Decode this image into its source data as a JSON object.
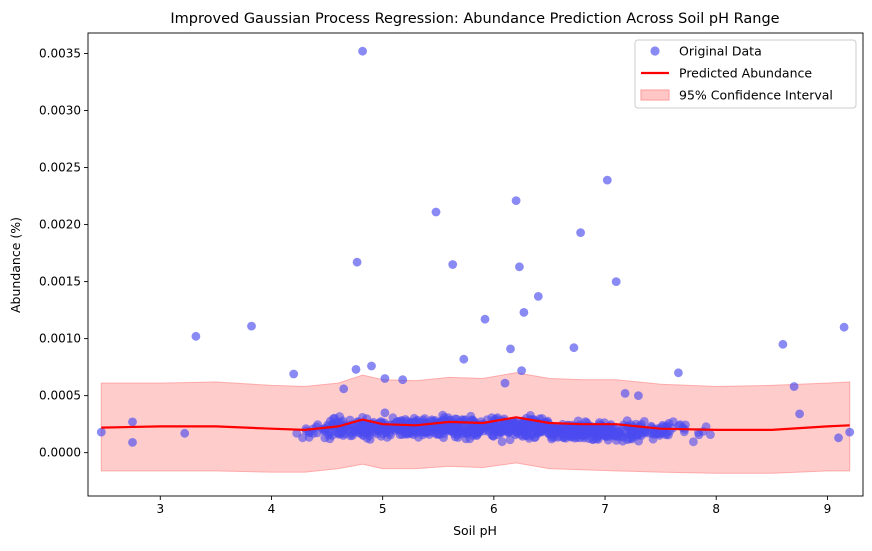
{
  "chart_data": {
    "type": "scatter",
    "title": "Improved Gaussian Process Regression: Abundance Prediction Across Soil pH Range",
    "xlabel": "Soil pH",
    "ylabel": "Abundance (%)",
    "xlim": [
      2.35,
      9.32
    ],
    "ylim": [
      -0.00038,
      0.00368
    ],
    "xticks": [
      3,
      4,
      5,
      6,
      7,
      8,
      9
    ],
    "xtick_labels": [
      "3",
      "4",
      "5",
      "6",
      "7",
      "8",
      "9"
    ],
    "yticks": [
      0.0,
      0.0005,
      0.001,
      0.0015,
      0.002,
      0.0025,
      0.003,
      0.0035
    ],
    "ytick_labels": [
      "0.0000",
      "0.0005",
      "0.0010",
      "0.0015",
      "0.0020",
      "0.0025",
      "0.0030",
      "0.0035"
    ],
    "grid": false,
    "legend_position": "top-right",
    "legend": [
      {
        "label": "Original Data",
        "kind": "marker",
        "color": "#4b4bf0"
      },
      {
        "label": "Predicted Abundance",
        "kind": "line",
        "color": "#ff0000"
      },
      {
        "label": "95% Confidence Interval",
        "kind": "patch",
        "color": "#ffc6c6"
      }
    ],
    "colors": {
      "points": "#4b4bf0",
      "line": "#ff0000",
      "band": "#ff9a9a"
    },
    "dense_cluster": {
      "x_min": 3.3,
      "x_max": 8.8,
      "y_center": 0.00019,
      "y_spread": 0.00012,
      "count": 900,
      "seed": 7
    },
    "series": [
      {
        "name": "Original Data",
        "type": "scatter",
        "points": [
          [
            2.47,
            0.00018
          ],
          [
            2.75,
            0.00027
          ],
          [
            2.75,
            9e-05
          ],
          [
            3.22,
            0.00017
          ],
          [
            3.32,
            0.00102
          ],
          [
            3.82,
            0.00111
          ],
          [
            4.2,
            0.00069
          ],
          [
            4.77,
            0.00167
          ],
          [
            4.82,
            0.00352
          ],
          [
            4.76,
            0.00073
          ],
          [
            4.9,
            0.00076
          ],
          [
            5.02,
            0.00065
          ],
          [
            5.18,
            0.00064
          ],
          [
            5.48,
            0.00211
          ],
          [
            5.63,
            0.00165
          ],
          [
            5.73,
            0.00082
          ],
          [
            5.92,
            0.00117
          ],
          [
            6.15,
            0.00091
          ],
          [
            6.2,
            0.00221
          ],
          [
            6.23,
            0.00163
          ],
          [
            6.25,
            0.00072
          ],
          [
            6.27,
            0.00123
          ],
          [
            6.4,
            0.00137
          ],
          [
            6.72,
            0.00092
          ],
          [
            6.78,
            0.00193
          ],
          [
            7.02,
            0.00239
          ],
          [
            7.1,
            0.0015
          ],
          [
            7.66,
            0.0007
          ],
          [
            8.6,
            0.00095
          ],
          [
            8.7,
            0.00058
          ],
          [
            9.15,
            0.0011
          ],
          [
            9.2,
            0.00018
          ],
          [
            9.1,
            0.00013
          ],
          [
            8.75,
            0.00034
          ],
          [
            7.3,
            0.0005
          ],
          [
            7.18,
            0.00052
          ],
          [
            6.1,
            0.00061
          ],
          [
            5.02,
            0.00035
          ],
          [
            4.65,
            0.00056
          ]
        ]
      },
      {
        "name": "Predicted Abundance",
        "type": "line",
        "x": [
          2.47,
          3.0,
          3.5,
          4.0,
          4.3,
          4.6,
          4.82,
          5.0,
          5.3,
          5.6,
          5.9,
          6.2,
          6.5,
          6.8,
          7.1,
          7.5,
          8.0,
          8.5,
          9.0,
          9.2
        ],
        "y": [
          0.00022,
          0.00023,
          0.00023,
          0.00021,
          0.0002,
          0.00023,
          0.00029,
          0.00025,
          0.00024,
          0.00027,
          0.00026,
          0.00031,
          0.00026,
          0.00025,
          0.00025,
          0.00021,
          0.0002,
          0.0002,
          0.00023,
          0.00024
        ]
      },
      {
        "name": "95% Confidence Interval",
        "type": "band",
        "x": [
          2.47,
          3.0,
          3.5,
          4.0,
          4.3,
          4.6,
          4.82,
          5.0,
          5.3,
          5.6,
          5.9,
          6.2,
          6.5,
          6.8,
          7.1,
          7.5,
          8.0,
          8.5,
          9.0,
          9.2
        ],
        "lower": [
          -0.00016,
          -0.00016,
          -0.00016,
          -0.00017,
          -0.00017,
          -0.00014,
          -0.0001,
          -0.00014,
          -0.00014,
          -0.00012,
          -0.00013,
          -9e-05,
          -0.00014,
          -0.00015,
          -0.00016,
          -0.00017,
          -0.00018,
          -0.00018,
          -0.00016,
          -0.00016
        ],
        "upper": [
          0.00061,
          0.00061,
          0.00062,
          0.00059,
          0.00058,
          0.00061,
          0.00068,
          0.00064,
          0.00063,
          0.00066,
          0.00065,
          0.0007,
          0.00065,
          0.00064,
          0.00064,
          0.0006,
          0.00058,
          0.00059,
          0.00061,
          0.00062
        ]
      }
    ]
  }
}
